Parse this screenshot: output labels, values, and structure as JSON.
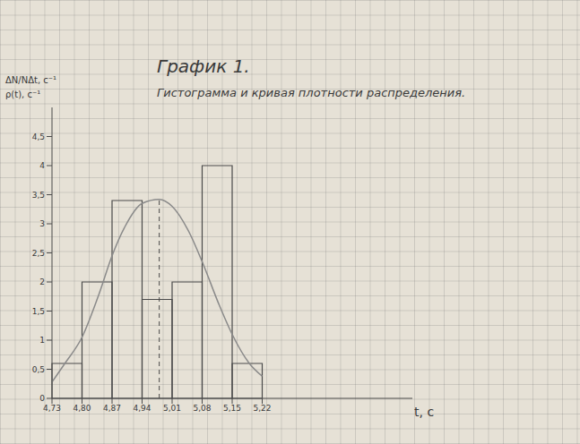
{
  "chart_data": {
    "type": "histogram",
    "title": "График 1.",
    "subtitle": "Гистограмма и кривая плотности распределения.",
    "x_label": "t, c",
    "y_label": [
      "ΔN/NΔt, c⁻¹",
      "ρ(t), c⁻¹"
    ],
    "bins": [
      4.73,
      4.8,
      4.87,
      4.94,
      5.01,
      5.08,
      5.15,
      5.22
    ],
    "counts": [
      0.6,
      2,
      3.4,
      1.7,
      2,
      4,
      0.6
    ],
    "color": "#4a4a4a",
    "curve": {
      "x": [
        4.73,
        4.76,
        4.8,
        4.84,
        4.87,
        4.9,
        4.94,
        4.98,
        5.01,
        5.05,
        5.08,
        5.12,
        5.15,
        5.19,
        5.22
      ],
      "y": [
        0.28,
        0.6,
        1.05,
        1.8,
        2.45,
        2.95,
        3.35,
        3.42,
        3.3,
        2.85,
        2.35,
        1.6,
        1.1,
        0.6,
        0.38
      ],
      "color": "#8a8a8a"
    },
    "mean_line": {
      "x": 4.98,
      "y": 3.42,
      "line_style": "dashed"
    },
    "xlim": [
      4.73,
      5.57
    ],
    "xticks": [
      {
        "value": 4.73,
        "label": "4,73"
      },
      {
        "value": 4.8,
        "label": "4,80"
      },
      {
        "value": 4.87,
        "label": "4,87"
      },
      {
        "value": 4.94,
        "label": "4,94"
      },
      {
        "value": 5.01,
        "label": "5,01"
      },
      {
        "value": 5.08,
        "label": "5,08"
      },
      {
        "value": 5.15,
        "label": "5,15"
      },
      {
        "value": 5.22,
        "label": "5,22"
      }
    ],
    "ylim": [
      0,
      5
    ],
    "yticks": [
      0,
      {
        "value": 0.5,
        "label": "0,5"
      },
      1,
      {
        "value": 1.5,
        "label": "1,5"
      },
      2,
      {
        "value": 2.5,
        "label": "2,5"
      },
      3,
      {
        "value": 3.5,
        "label": "3,5"
      },
      4,
      {
        "value": 4.5,
        "label": "4,5"
      }
    ],
    "grid": false
  }
}
